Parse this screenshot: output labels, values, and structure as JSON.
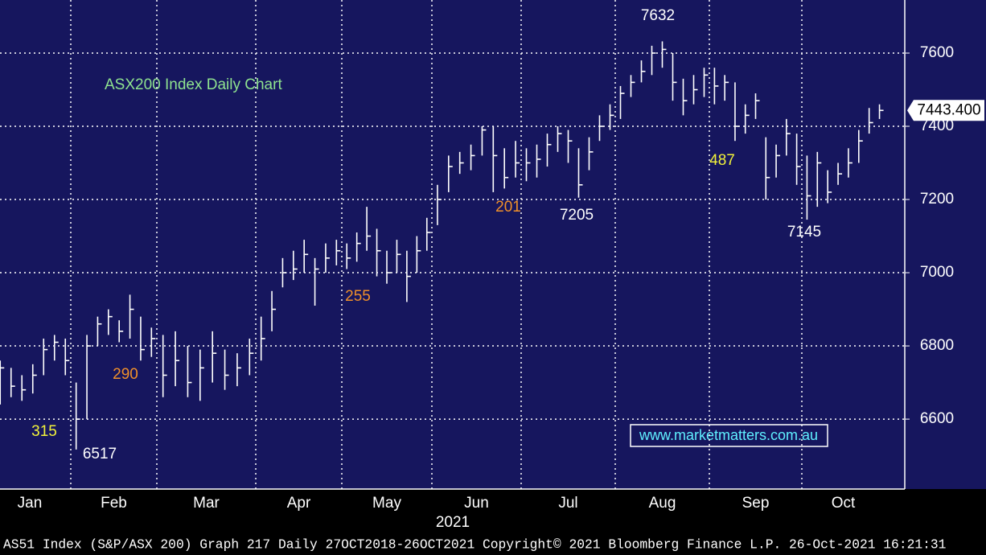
{
  "chart_data": {
    "type": "ohlc",
    "title": "ASX200 Index Daily Chart",
    "categories": [
      "Jan",
      "Feb",
      "Mar",
      "Apr",
      "May",
      "Jun",
      "Jul",
      "Aug",
      "Sep",
      "Oct"
    ],
    "x_label": "2021",
    "color": "#ffffff",
    "close": [
      [
        6630,
        6740,
        6690,
        6680,
        6720,
        6790,
        6810,
        6760
      ],
      [
        6600,
        6800,
        6860,
        6880,
        6840,
        6900,
        6790,
        6820
      ],
      [
        6720,
        6760,
        6700,
        6740,
        6780,
        6720,
        6740,
        6780
      ],
      [
        6820,
        6900,
        7000,
        7010,
        7050,
        7010,
        7040,
        7060
      ],
      [
        7040,
        7080,
        7100,
        7060,
        7000,
        7050,
        6990,
        7060,
        7110
      ],
      [
        7200,
        7290,
        7300,
        7320,
        7390,
        7320,
        7260,
        7300
      ],
      [
        7300,
        7310,
        7350,
        7380,
        7360,
        7240,
        7330,
        7400,
        7430
      ],
      [
        7490,
        7520,
        7550,
        7600,
        7610,
        7520,
        7470,
        7500,
        7540
      ],
      [
        7510,
        7520,
        7400,
        7430,
        7470,
        7260,
        7320,
        7380,
        7290
      ],
      [
        7210,
        7300,
        7220,
        7270,
        7300,
        7360,
        7410,
        7443.4
      ]
    ],
    "high": [
      [
        6660,
        6760,
        6740,
        6720,
        6750,
        6820,
        6830,
        6820
      ],
      [
        6700,
        6830,
        6880,
        6900,
        6870,
        6940,
        6880,
        6850
      ],
      [
        6830,
        6840,
        6800,
        6790,
        6840,
        6790,
        6780,
        6820
      ],
      [
        6880,
        6950,
        7040,
        7060,
        7090,
        7040,
        7080,
        7090
      ],
      [
        7080,
        7110,
        7180,
        7120,
        7060,
        7090,
        7060,
        7100,
        7150
      ],
      [
        7240,
        7320,
        7330,
        7350,
        7400,
        7400,
        7340,
        7360
      ],
      [
        7340,
        7350,
        7380,
        7400,
        7390,
        7340,
        7370,
        7430,
        7460
      ],
      [
        7510,
        7540,
        7580,
        7620,
        7632,
        7600,
        7530,
        7540,
        7560
      ],
      [
        7560,
        7540,
        7520,
        7460,
        7490,
        7370,
        7350,
        7420,
        7380
      ],
      [
        7320,
        7330,
        7280,
        7300,
        7340,
        7390,
        7450,
        7460
      ]
    ],
    "low": [
      [
        6600,
        6640,
        6660,
        6650,
        6670,
        6720,
        6760,
        6720
      ],
      [
        6517,
        6600,
        6800,
        6830,
        6810,
        6820,
        6760,
        6770
      ],
      [
        6660,
        6690,
        6660,
        6650,
        6700,
        6680,
        6690,
        6720
      ],
      [
        6760,
        6840,
        6960,
        6980,
        7000,
        6910,
        7000,
        7020
      ],
      [
        7010,
        7030,
        7060,
        6990,
        6970,
        7000,
        6920,
        7000,
        7060
      ],
      [
        7130,
        7220,
        7270,
        7280,
        7320,
        7220,
        7230,
        7260
      ],
      [
        7250,
        7260,
        7290,
        7330,
        7300,
        7205,
        7280,
        7360,
        7390
      ],
      [
        7420,
        7480,
        7520,
        7540,
        7560,
        7470,
        7430,
        7460,
        7480
      ],
      [
        7460,
        7470,
        7360,
        7380,
        7420,
        7200,
        7260,
        7320,
        7240
      ],
      [
        7145,
        7180,
        7190,
        7240,
        7260,
        7300,
        7380,
        7420
      ]
    ],
    "ylim": [
      6409,
      7745
    ],
    "yticks": [
      6600,
      6800,
      7000,
      7200,
      7400,
      7600
    ],
    "grid": true,
    "last_price": {
      "value": 7443.4,
      "label": "7443.400"
    },
    "annotations": [
      {
        "label": "315",
        "color": "#f2f23a"
      },
      {
        "label": "6517",
        "color": "#ffffff"
      },
      {
        "label": "290",
        "color": "#f0902a"
      },
      {
        "label": "255",
        "color": "#f0902a"
      },
      {
        "label": "201",
        "color": "#f0902a"
      },
      {
        "label": "7205",
        "color": "#ffffff"
      },
      {
        "label": "7632",
        "color": "#ffffff"
      },
      {
        "label": "487",
        "color": "#f2f23a"
      },
      {
        "label": "7145",
        "color": "#ffffff"
      }
    ],
    "watermark": "www.marketmatters.com.au",
    "footer": "AS51 Index (S&P/ASX 200) Graph 217  Daily 27OCT2018-26OCT2021 Copyright© 2021 Bloomberg Finance L.P. 26-Oct-2021 16:21:31"
  }
}
